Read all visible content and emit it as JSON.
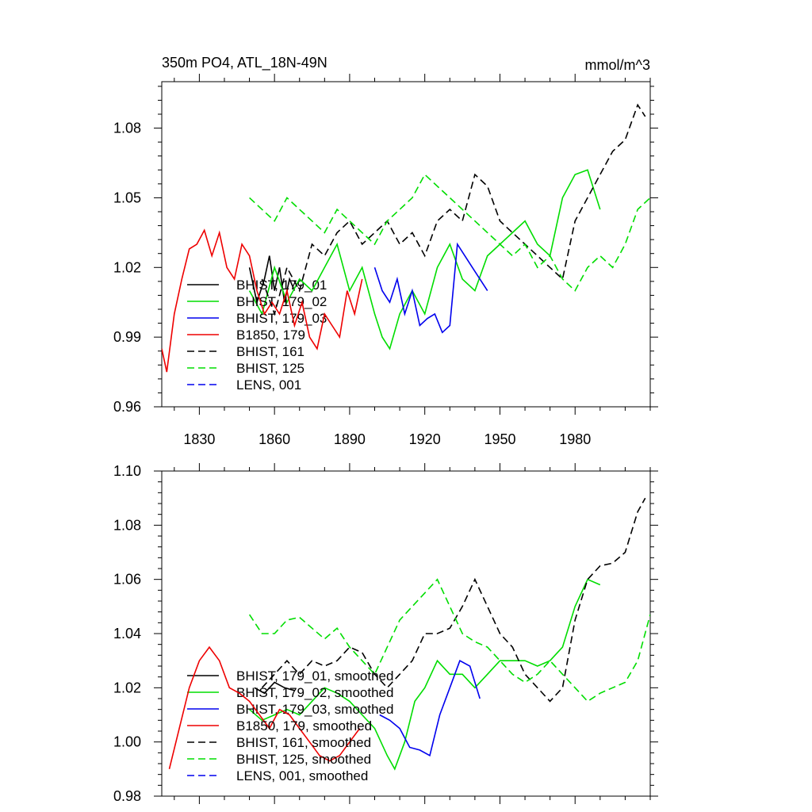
{
  "chart_data": [
    {
      "type": "line",
      "title": "350m PO4, ATL_18N-49N",
      "units": "mmol/m^3",
      "xlim": [
        1815,
        2010
      ],
      "ylim": [
        0.96,
        1.1
      ],
      "xticks": [
        1830,
        1860,
        1890,
        1920,
        1950,
        1980
      ],
      "yticks": [
        0.96,
        0.99,
        1.02,
        1.05,
        1.08
      ],
      "series": [
        {
          "name": "BHIST, 179_01",
          "color": "#000000",
          "dash": false,
          "x": [
            1850,
            1853,
            1856,
            1858,
            1860,
            1862,
            1864,
            1866,
            1868
          ],
          "y": [
            1.02,
            1.005,
            1.015,
            1.025,
            1.01,
            1.02,
            1.005,
            1.015,
            1.01
          ]
        },
        {
          "name": "BHIST, 179_02",
          "color": "#00dd00",
          "dash": false,
          "x": [
            1850,
            1855,
            1860,
            1865,
            1870,
            1875,
            1880,
            1885,
            1890,
            1895,
            1900,
            1903,
            1906,
            1910,
            1915,
            1920,
            1925,
            1930,
            1935,
            1940,
            1945,
            1950,
            1955,
            1960,
            1965,
            1970,
            1975,
            1980,
            1985,
            1990
          ],
          "y": [
            1.01,
            1.0,
            1.02,
            1.005,
            1.015,
            1.01,
            1.02,
            1.03,
            1.01,
            1.02,
            1.0,
            0.99,
            0.985,
            1.0,
            1.01,
            1.0,
            1.02,
            1.03,
            1.015,
            1.01,
            1.025,
            1.03,
            1.035,
            1.04,
            1.03,
            1.025,
            1.05,
            1.06,
            1.062,
            1.045
          ]
        },
        {
          "name": "BHIST, 179_03",
          "color": "#0000ee",
          "dash": false,
          "x": [
            1900,
            1903,
            1906,
            1909,
            1912,
            1915,
            1918,
            1921,
            1924,
            1927,
            1930,
            1933,
            1936,
            1939,
            1942,
            1945
          ],
          "y": [
            1.02,
            1.01,
            1.005,
            1.015,
            1.0,
            1.01,
            0.995,
            0.998,
            1.0,
            0.992,
            0.995,
            1.03,
            1.025,
            1.02,
            1.015,
            1.01
          ]
        },
        {
          "name": "B1850, 179",
          "color": "#ee0000",
          "dash": false,
          "x": [
            1815,
            1817,
            1820,
            1823,
            1826,
            1829,
            1832,
            1835,
            1838,
            1841,
            1844,
            1847,
            1850,
            1853,
            1856,
            1859,
            1862,
            1865,
            1868,
            1871,
            1874,
            1877,
            1880,
            1883,
            1886,
            1889,
            1892,
            1895
          ],
          "y": [
            0.985,
            0.975,
            1.0,
            1.015,
            1.028,
            1.03,
            1.036,
            1.025,
            1.035,
            1.02,
            1.015,
            1.03,
            1.025,
            1.01,
            1.0,
            1.005,
            1.0,
            1.01,
            0.995,
            1.005,
            0.99,
            0.985,
            1.0,
            0.995,
            0.99,
            1.01,
            1.0,
            1.015
          ]
        },
        {
          "name": "BHIST, 161",
          "color": "#000000",
          "dash": true,
          "x": [
            1855,
            1860,
            1865,
            1870,
            1875,
            1880,
            1885,
            1890,
            1895,
            1900,
            1905,
            1910,
            1915,
            1920,
            1925,
            1930,
            1935,
            1940,
            1945,
            1950,
            1955,
            1960,
            1965,
            1970,
            1975,
            1980,
            1985,
            1990,
            1995,
            2000,
            2005,
            2008
          ],
          "y": [
            1.015,
            1.0,
            1.02,
            1.01,
            1.03,
            1.025,
            1.035,
            1.04,
            1.03,
            1.035,
            1.04,
            1.03,
            1.035,
            1.025,
            1.04,
            1.045,
            1.04,
            1.06,
            1.055,
            1.04,
            1.035,
            1.03,
            1.025,
            1.02,
            1.015,
            1.04,
            1.05,
            1.06,
            1.07,
            1.075,
            1.09,
            1.085
          ]
        },
        {
          "name": "BHIST, 125",
          "color": "#00dd00",
          "dash": true,
          "x": [
            1850,
            1855,
            1860,
            1865,
            1870,
            1875,
            1880,
            1885,
            1890,
            1895,
            1900,
            1905,
            1910,
            1915,
            1920,
            1925,
            1930,
            1935,
            1940,
            1945,
            1950,
            1955,
            1960,
            1965,
            1970,
            1975,
            1980,
            1985,
            1990,
            1995,
            2000,
            2005,
            2010
          ],
          "y": [
            1.05,
            1.045,
            1.04,
            1.05,
            1.045,
            1.04,
            1.035,
            1.045,
            1.04,
            1.035,
            1.03,
            1.04,
            1.045,
            1.05,
            1.06,
            1.055,
            1.05,
            1.045,
            1.04,
            1.035,
            1.03,
            1.025,
            1.03,
            1.02,
            1.025,
            1.015,
            1.01,
            1.02,
            1.025,
            1.02,
            1.03,
            1.045,
            1.05
          ]
        },
        {
          "name": "LENS, 001",
          "color": "#0000ee",
          "dash": true,
          "x": [],
          "y": []
        }
      ]
    },
    {
      "type": "line",
      "title": "",
      "units": "",
      "xlim": [
        1815,
        2010
      ],
      "ylim": [
        0.98,
        1.1
      ],
      "xticks": [
        1830,
        1860,
        1890,
        1920,
        1950,
        1980
      ],
      "yticks": [
        0.98,
        1.0,
        1.02,
        1.04,
        1.06,
        1.08,
        1.1
      ],
      "series": [
        {
          "name": "BHIST, 179_01, smoothed",
          "color": "#000000",
          "dash": false,
          "x": [
            1852,
            1856,
            1860,
            1864,
            1868
          ],
          "y": [
            1.02,
            1.018,
            1.022,
            1.02,
            1.019
          ]
        },
        {
          "name": "BHIST, 179_02, smoothed",
          "color": "#00dd00",
          "dash": false,
          "x": [
            1850,
            1855,
            1860,
            1865,
            1870,
            1875,
            1880,
            1885,
            1890,
            1895,
            1900,
            1905,
            1908,
            1912,
            1916,
            1920,
            1925,
            1930,
            1935,
            1940,
            1945,
            1950,
            1955,
            1960,
            1965,
            1970,
            1975,
            1980,
            1985,
            1990
          ],
          "y": [
            1.012,
            1.008,
            1.01,
            1.012,
            1.01,
            1.015,
            1.02,
            1.018,
            1.015,
            1.01,
            1.005,
            0.995,
            0.99,
            1.0,
            1.015,
            1.02,
            1.03,
            1.025,
            1.025,
            1.02,
            1.025,
            1.03,
            1.03,
            1.03,
            1.028,
            1.03,
            1.035,
            1.05,
            1.06,
            1.058
          ]
        },
        {
          "name": "BHIST, 179_03, smoothed",
          "color": "#0000ee",
          "dash": false,
          "x": [
            1902,
            1906,
            1910,
            1914,
            1918,
            1922,
            1926,
            1930,
            1934,
            1938,
            1942
          ],
          "y": [
            1.01,
            1.008,
            1.005,
            0.998,
            0.997,
            0.995,
            1.01,
            1.02,
            1.03,
            1.028,
            1.016
          ]
        },
        {
          "name": "B1850, 179, smoothed",
          "color": "#ee0000",
          "dash": false,
          "x": [
            1818,
            1822,
            1826,
            1830,
            1834,
            1838,
            1842,
            1846,
            1850,
            1854,
            1858,
            1862,
            1866,
            1870,
            1874,
            1878,
            1882,
            1886,
            1890,
            1894
          ],
          "y": [
            0.99,
            1.005,
            1.02,
            1.03,
            1.035,
            1.03,
            1.02,
            1.018,
            1.015,
            1.01,
            1.005,
            1.012,
            1.01,
            1.005,
            1.0,
            0.995,
            0.993,
            0.995,
            1.0,
            1.005
          ]
        },
        {
          "name": "BHIST, 161, smoothed",
          "color": "#000000",
          "dash": true,
          "x": [
            1855,
            1860,
            1865,
            1870,
            1875,
            1880,
            1885,
            1890,
            1895,
            1900,
            1905,
            1910,
            1915,
            1920,
            1925,
            1930,
            1935,
            1940,
            1945,
            1950,
            1955,
            1960,
            1965,
            1970,
            1975,
            1980,
            1985,
            1990,
            1995,
            2000,
            2005,
            2008
          ],
          "y": [
            1.02,
            1.025,
            1.03,
            1.025,
            1.03,
            1.028,
            1.03,
            1.035,
            1.033,
            1.025,
            1.02,
            1.025,
            1.03,
            1.04,
            1.04,
            1.042,
            1.05,
            1.06,
            1.05,
            1.04,
            1.035,
            1.025,
            1.02,
            1.015,
            1.02,
            1.045,
            1.06,
            1.065,
            1.066,
            1.07,
            1.085,
            1.09
          ]
        },
        {
          "name": "BHIST, 125, smoothed",
          "color": "#00dd00",
          "dash": true,
          "x": [
            1850,
            1855,
            1860,
            1865,
            1870,
            1875,
            1880,
            1885,
            1890,
            1895,
            1900,
            1905,
            1910,
            1915,
            1920,
            1925,
            1930,
            1935,
            1940,
            1945,
            1950,
            1955,
            1960,
            1965,
            1970,
            1975,
            1980,
            1985,
            1990,
            1995,
            2000,
            2005,
            2010
          ],
          "y": [
            1.047,
            1.04,
            1.04,
            1.045,
            1.046,
            1.042,
            1.038,
            1.042,
            1.035,
            1.03,
            1.025,
            1.035,
            1.045,
            1.05,
            1.055,
            1.06,
            1.05,
            1.04,
            1.037,
            1.035,
            1.03,
            1.025,
            1.022,
            1.025,
            1.03,
            1.025,
            1.02,
            1.015,
            1.018,
            1.02,
            1.022,
            1.03,
            1.047
          ]
        },
        {
          "name": "LENS, 001, smoothed",
          "color": "#0000ee",
          "dash": true,
          "x": [],
          "y": []
        }
      ]
    }
  ]
}
